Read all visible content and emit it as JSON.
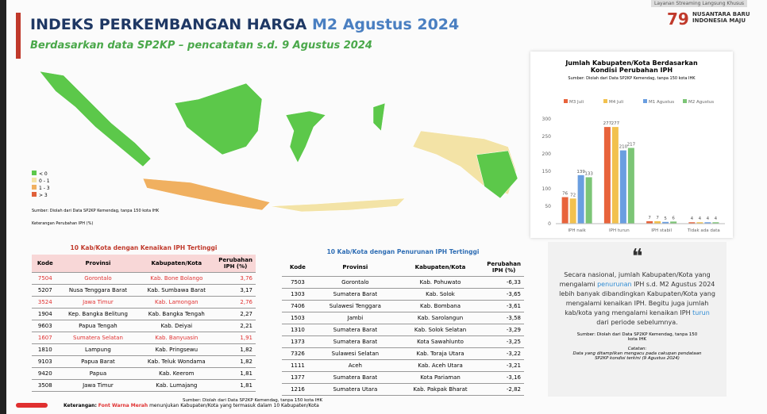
{
  "header": {
    "title": "INDEKS PERKEMBANGAN HARGA",
    "title_highlight": "M2 Agustus 2024",
    "subtitle": "Berdasarkan data SP2KP – pencatatan s.d. 9 Agustus 2024",
    "logo_mark": "79",
    "logo": "NUSANTARA BARU INDONESIA MAJU",
    "stream_label": "Layanan Streaming Langsung Khusus"
  },
  "map": {
    "legend": [
      {
        "label": "< 0",
        "color": "#5cc84a"
      },
      {
        "label": "0 - 1",
        "color": "#f3e3a6"
      },
      {
        "label": "1 - 3",
        "color": "#f0b060"
      },
      {
        "label": "> 3",
        "color": "#e0603a"
      }
    ],
    "source": "Sumber: Diolah dari Data SP2KP Kemendag, tanpa 150 kota IHK",
    "note": "Keterangan Perubahan IPH (%)"
  },
  "chart_data": {
    "type": "bar",
    "title": "Jumlah Kabupaten/Kota Berdasarkan Kondisi Perubahan IPH",
    "source": "Sumber: Diolah dari Data SP2KP Kemendag, tanpa 150 kota IHK",
    "categories": [
      "IPH naik",
      "IPH turun",
      "IPH stabil",
      "Tidak ada data"
    ],
    "series": [
      {
        "name": "M3 Juli",
        "color": "#e8633b",
        "values": [
          76,
          277,
          7,
          4
        ]
      },
      {
        "name": "M4 Juli",
        "color": "#f2c14e",
        "values": [
          72,
          277,
          7,
          4
        ]
      },
      {
        "name": "M1 Agustus",
        "color": "#6a9ee0",
        "values": [
          139,
          210,
          5,
          4
        ]
      },
      {
        "name": "M2 Agustus",
        "color": "#7cc576",
        "values": [
          133,
          217,
          6,
          4
        ]
      }
    ],
    "ylim": [
      0,
      300
    ],
    "yticks": [
      0,
      50,
      100,
      150,
      200,
      250,
      300
    ],
    "grid": false
  },
  "tables": [
    {
      "title": "10 Kab/Kota dengan Kenaikan IPH Tertinggi",
      "headers": [
        "Kode",
        "Provinsi",
        "Kabupaten/Kota",
        "Perubahan IPH (%)"
      ],
      "rows": [
        [
          "7504",
          "Gorontalo",
          "Kab. Bone Bolango",
          "3,76"
        ],
        [
          "5207",
          "Nusa Tenggara Barat",
          "Kab. Sumbawa Barat",
          "3,17"
        ],
        [
          "3524",
          "Jawa Timur",
          "Kab. Lamongan",
          "2,76"
        ],
        [
          "1904",
          "Kep. Bangka Belitung",
          "Kab. Bangka Tengah",
          "2,27"
        ],
        [
          "9603",
          "Papua Tengah",
          "Kab. Deiyai",
          "2,21"
        ],
        [
          "1607",
          "Sumatera Selatan",
          "Kab. Banyuasin",
          "1,91"
        ],
        [
          "1810",
          "Lampung",
          "Kab. Pringsewu",
          "1,82"
        ],
        [
          "9103",
          "Papua Barat",
          "Kab. Teluk Wondama",
          "1,82"
        ],
        [
          "9420",
          "Papua",
          "Kab. Keerom",
          "1,81"
        ],
        [
          "3508",
          "Jawa Timur",
          "Kab. Lumajang",
          "1,81"
        ]
      ],
      "highlighted_rows": [
        0,
        2,
        5
      ]
    },
    {
      "title": "10 Kab/Kota dengan Penurunan IPH Tertinggi",
      "headers": [
        "Kode",
        "Provinsi",
        "Kabupaten/Kota",
        "Perubahan IPH (%)"
      ],
      "rows": [
        [
          "7503",
          "Gorontalo",
          "Kab. Pohuwato",
          "-6,33"
        ],
        [
          "1303",
          "Sumatera Barat",
          "Kab. Solok",
          "-3,65"
        ],
        [
          "7406",
          "Sulawesi Tenggara",
          "Kab. Bombana",
          "-3,61"
        ],
        [
          "1503",
          "Jambi",
          "Kab. Sarolangun",
          "-3,58"
        ],
        [
          "1310",
          "Sumatera Barat",
          "Kab. Solok Selatan",
          "-3,29"
        ],
        [
          "1373",
          "Sumatera Barat",
          "Kota Sawahlunto",
          "-3,25"
        ],
        [
          "7326",
          "Sulawesi Selatan",
          "Kab. Toraja Utara",
          "-3,22"
        ],
        [
          "1111",
          "Aceh",
          "Kab. Aceh Utara",
          "-3,21"
        ],
        [
          "1377",
          "Sumatera Barat",
          "Kota Pariaman",
          "-3,16"
        ],
        [
          "1216",
          "Sumatera Utara",
          "Kab. Pakpak Bharat",
          "-2,82"
        ]
      ],
      "highlighted_rows": []
    }
  ],
  "table_source": "Sumber: Diolah dari Data SP2KP Kemendag, tanpa 150 kota IHK",
  "footnote": {
    "label": "Keterangan:",
    "highlight": "Font Warna Merah",
    "text": "menunjukan Kabupaten/Kota yang termasuk dalam 10 Kabupaten/Kota"
  },
  "quote": {
    "mark": "❝",
    "segments": [
      {
        "text": "Secara nasional, jumlah Kabupaten/Kota yang mengalami "
      },
      {
        "text": "penurunan",
        "emphasis": true
      },
      {
        "text": " IPH s.d. M2 Agustus 2024 lebih banyak dibandingkan Kabupaten/Kota yang mengalami kenaikan IPH. Begitu juga jumlah kab/kota yang mengalami kenaikan IPH "
      },
      {
        "text": "turun",
        "emphasis": true
      },
      {
        "text": " dari periode sebelumnya."
      }
    ],
    "source": "Sumber: Diolah dari Data SP2KP Kemendag, tanpa 150 kota IHK",
    "note_label": "Catatan:",
    "note": "Data yang ditampilkan mengacu pada cakupan pendataan SP2KP kondisi terkini (9 Agustus 2024)"
  }
}
